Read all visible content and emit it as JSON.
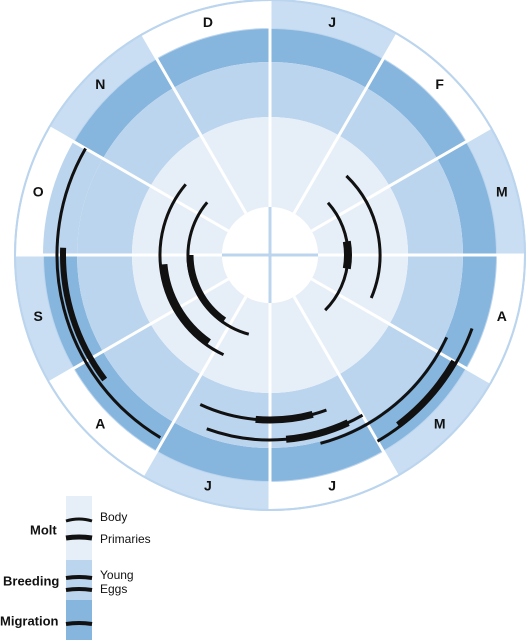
{
  "months": [
    "J",
    "F",
    "M",
    "A",
    "M",
    "J",
    "J",
    "A",
    "S",
    "O",
    "N",
    "D"
  ],
  "legend": {
    "molt": {
      "title": "Molt",
      "items": [
        "Body",
        "Primaries"
      ]
    },
    "breeding": {
      "title": "Breeding",
      "items": [
        "Young",
        "Eggs"
      ]
    },
    "migration": {
      "title": "Migration"
    }
  }
}
